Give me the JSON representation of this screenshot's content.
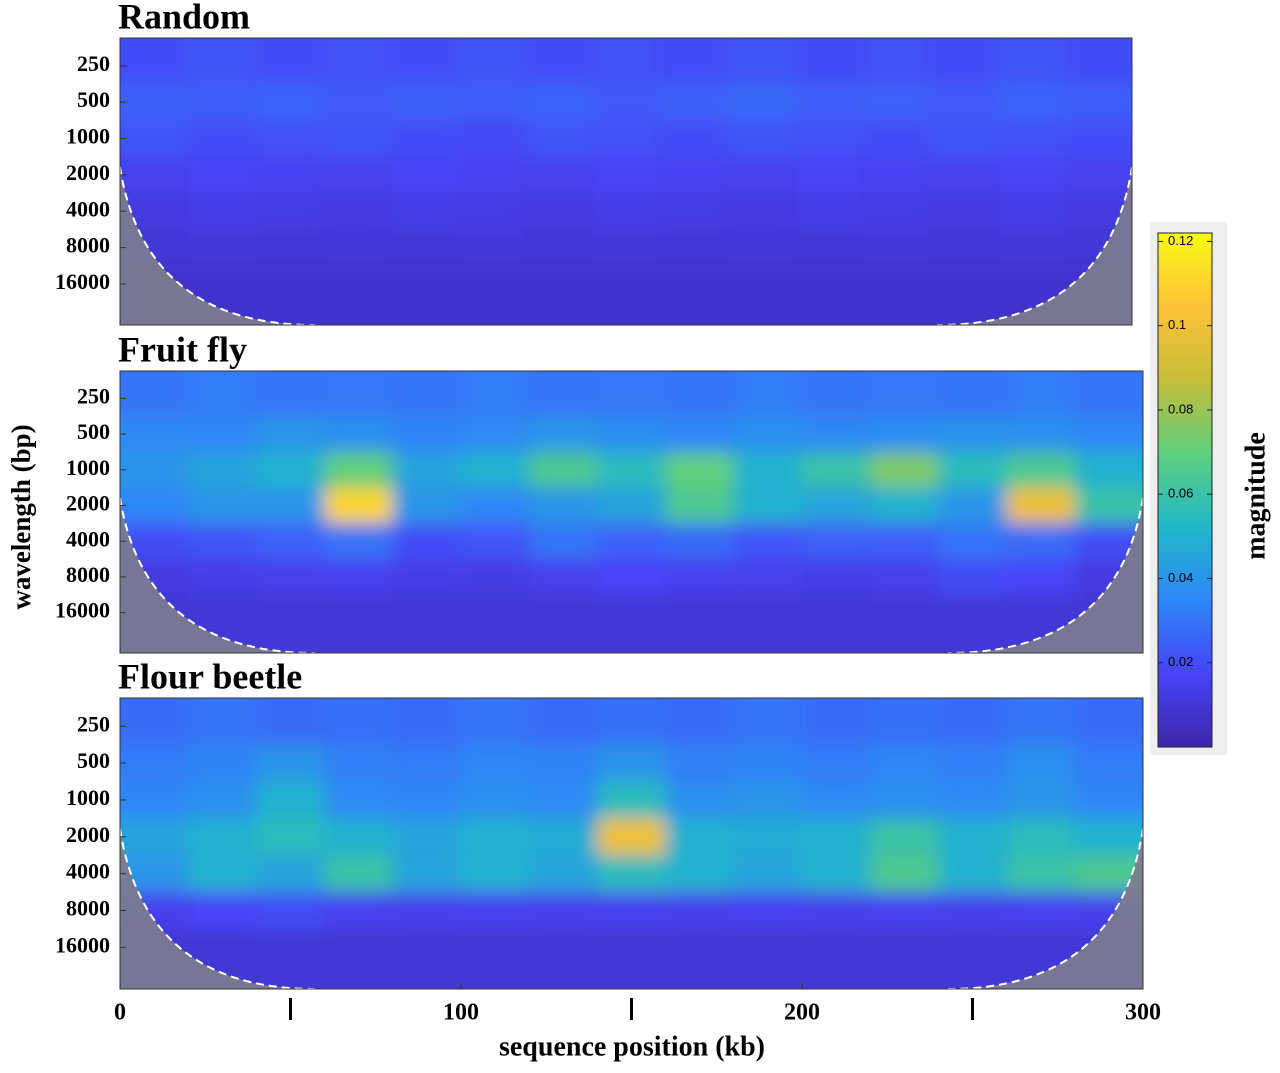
{
  "chart_data": [
    {
      "type": "heatmap",
      "title": "Random",
      "x": [
        10,
        30,
        50,
        70,
        90,
        110,
        130,
        150,
        170,
        190,
        210,
        230,
        250,
        270,
        290
      ],
      "y": [
        250,
        500,
        1000,
        2000,
        4000,
        8000,
        16000
      ],
      "z": [
        [
          0.02,
          0.022,
          0.02,
          0.021,
          0.02,
          0.022,
          0.02,
          0.021,
          0.02,
          0.022,
          0.02,
          0.021,
          0.02,
          0.022,
          0.02
        ],
        [
          0.025,
          0.024,
          0.026,
          0.023,
          0.025,
          0.024,
          0.026,
          0.023,
          0.025,
          0.027,
          0.024,
          0.025,
          0.023,
          0.026,
          0.024
        ],
        [
          0.022,
          0.02,
          0.021,
          0.022,
          0.02,
          0.019,
          0.022,
          0.021,
          0.02,
          0.022,
          0.021,
          0.02,
          0.022,
          0.021,
          0.02
        ],
        [
          0.015,
          0.017,
          0.016,
          0.015,
          0.017,
          0.016,
          0.015,
          0.017,
          0.016,
          0.015,
          0.017,
          0.016,
          0.015,
          0.017,
          0.015
        ],
        [
          0.012,
          0.014,
          0.013,
          0.012,
          0.014,
          0.013,
          0.012,
          0.014,
          0.013,
          0.012,
          0.014,
          0.013,
          0.012,
          0.014,
          0.012
        ],
        [
          0.01,
          0.011,
          0.01,
          0.011,
          0.01,
          0.011,
          0.01,
          0.011,
          0.01,
          0.011,
          0.01,
          0.011,
          0.01,
          0.011,
          0.01
        ],
        [
          0.008,
          0.008,
          0.008,
          0.008,
          0.008,
          0.008,
          0.008,
          0.008,
          0.008,
          0.008,
          0.008,
          0.008,
          0.008,
          0.008,
          0.008
        ]
      ],
      "xlim": [
        0,
        300
      ],
      "ylim": [
        147,
        35000
      ],
      "yscale": "log",
      "yticks": [
        250,
        500,
        1000,
        2000,
        4000,
        8000,
        16000
      ]
    },
    {
      "type": "heatmap",
      "title": "Fruit fly",
      "ylabel": "wavelength (bp)",
      "x": [
        10,
        30,
        50,
        70,
        90,
        110,
        130,
        150,
        170,
        190,
        210,
        230,
        250,
        270,
        290
      ],
      "y": [
        250,
        500,
        1000,
        2000,
        4000,
        8000,
        16000
      ],
      "z": [
        [
          0.03,
          0.032,
          0.03,
          0.031,
          0.03,
          0.032,
          0.03,
          0.031,
          0.03,
          0.032,
          0.03,
          0.031,
          0.03,
          0.032,
          0.03
        ],
        [
          0.036,
          0.035,
          0.04,
          0.038,
          0.034,
          0.036,
          0.04,
          0.037,
          0.035,
          0.038,
          0.036,
          0.037,
          0.039,
          0.038,
          0.035
        ],
        [
          0.04,
          0.045,
          0.05,
          0.07,
          0.045,
          0.05,
          0.065,
          0.055,
          0.07,
          0.05,
          0.06,
          0.075,
          0.055,
          0.065,
          0.05
        ],
        [
          0.035,
          0.04,
          0.04,
          0.11,
          0.04,
          0.035,
          0.04,
          0.045,
          0.065,
          0.05,
          0.045,
          0.05,
          0.04,
          0.1,
          0.06
        ],
        [
          0.02,
          0.022,
          0.025,
          0.03,
          0.02,
          0.022,
          0.03,
          0.025,
          0.028,
          0.022,
          0.025,
          0.024,
          0.03,
          0.028,
          0.02
        ],
        [
          0.012,
          0.014,
          0.015,
          0.016,
          0.014,
          0.013,
          0.015,
          0.018,
          0.016,
          0.015,
          0.014,
          0.015,
          0.02,
          0.018,
          0.012
        ],
        [
          0.01,
          0.01,
          0.01,
          0.01,
          0.01,
          0.01,
          0.01,
          0.01,
          0.01,
          0.01,
          0.01,
          0.01,
          0.01,
          0.01,
          0.01
        ]
      ],
      "xlim": [
        0,
        300
      ],
      "ylim": [
        147,
        35000
      ],
      "yscale": "log",
      "yticks": [
        250,
        500,
        1000,
        2000,
        4000,
        8000,
        16000
      ]
    },
    {
      "type": "heatmap",
      "title": "Flour beetle",
      "xlabel": "sequence position (kb)",
      "x": [
        10,
        30,
        50,
        70,
        90,
        110,
        130,
        150,
        170,
        190,
        210,
        230,
        250,
        270,
        290
      ],
      "y": [
        250,
        500,
        1000,
        2000,
        4000,
        8000,
        16000
      ],
      "z": [
        [
          0.028,
          0.03,
          0.028,
          0.029,
          0.028,
          0.03,
          0.028,
          0.029,
          0.028,
          0.03,
          0.028,
          0.029,
          0.028,
          0.03,
          0.028
        ],
        [
          0.032,
          0.034,
          0.04,
          0.033,
          0.032,
          0.035,
          0.034,
          0.04,
          0.033,
          0.034,
          0.032,
          0.035,
          0.033,
          0.038,
          0.032
        ],
        [
          0.035,
          0.038,
          0.05,
          0.036,
          0.035,
          0.038,
          0.036,
          0.055,
          0.038,
          0.04,
          0.036,
          0.038,
          0.036,
          0.04,
          0.035
        ],
        [
          0.045,
          0.05,
          0.055,
          0.05,
          0.045,
          0.05,
          0.048,
          0.1,
          0.05,
          0.048,
          0.05,
          0.06,
          0.05,
          0.055,
          0.05
        ],
        [
          0.04,
          0.05,
          0.045,
          0.06,
          0.045,
          0.05,
          0.045,
          0.055,
          0.05,
          0.045,
          0.05,
          0.065,
          0.05,
          0.06,
          0.065
        ],
        [
          0.015,
          0.018,
          0.02,
          0.016,
          0.015,
          0.016,
          0.015,
          0.016,
          0.015,
          0.016,
          0.015,
          0.016,
          0.015,
          0.016,
          0.015
        ],
        [
          0.01,
          0.01,
          0.01,
          0.01,
          0.01,
          0.01,
          0.01,
          0.01,
          0.01,
          0.01,
          0.01,
          0.01,
          0.01,
          0.01,
          0.01
        ]
      ],
      "xlim": [
        0,
        300
      ],
      "ylim": [
        147,
        35000
      ],
      "yscale": "log",
      "yticks": [
        250,
        500,
        1000,
        2000,
        4000,
        8000,
        16000
      ],
      "xticks": [
        0,
        100,
        200,
        300
      ],
      "xminorticks": [
        50,
        150,
        250
      ],
      "colorbar": {
        "label": "magnitude",
        "lim": [
          0,
          0.122
        ],
        "ticks": [
          0.02,
          0.04,
          0.06,
          0.08,
          0.1,
          0.12
        ],
        "colors": [
          "#3e26a8",
          "#4743f8",
          "#2e87f7",
          "#1fb8c9",
          "#5ecf7e",
          "#c6bd38",
          "#fdc238",
          "#f9fb15"
        ]
      }
    }
  ]
}
